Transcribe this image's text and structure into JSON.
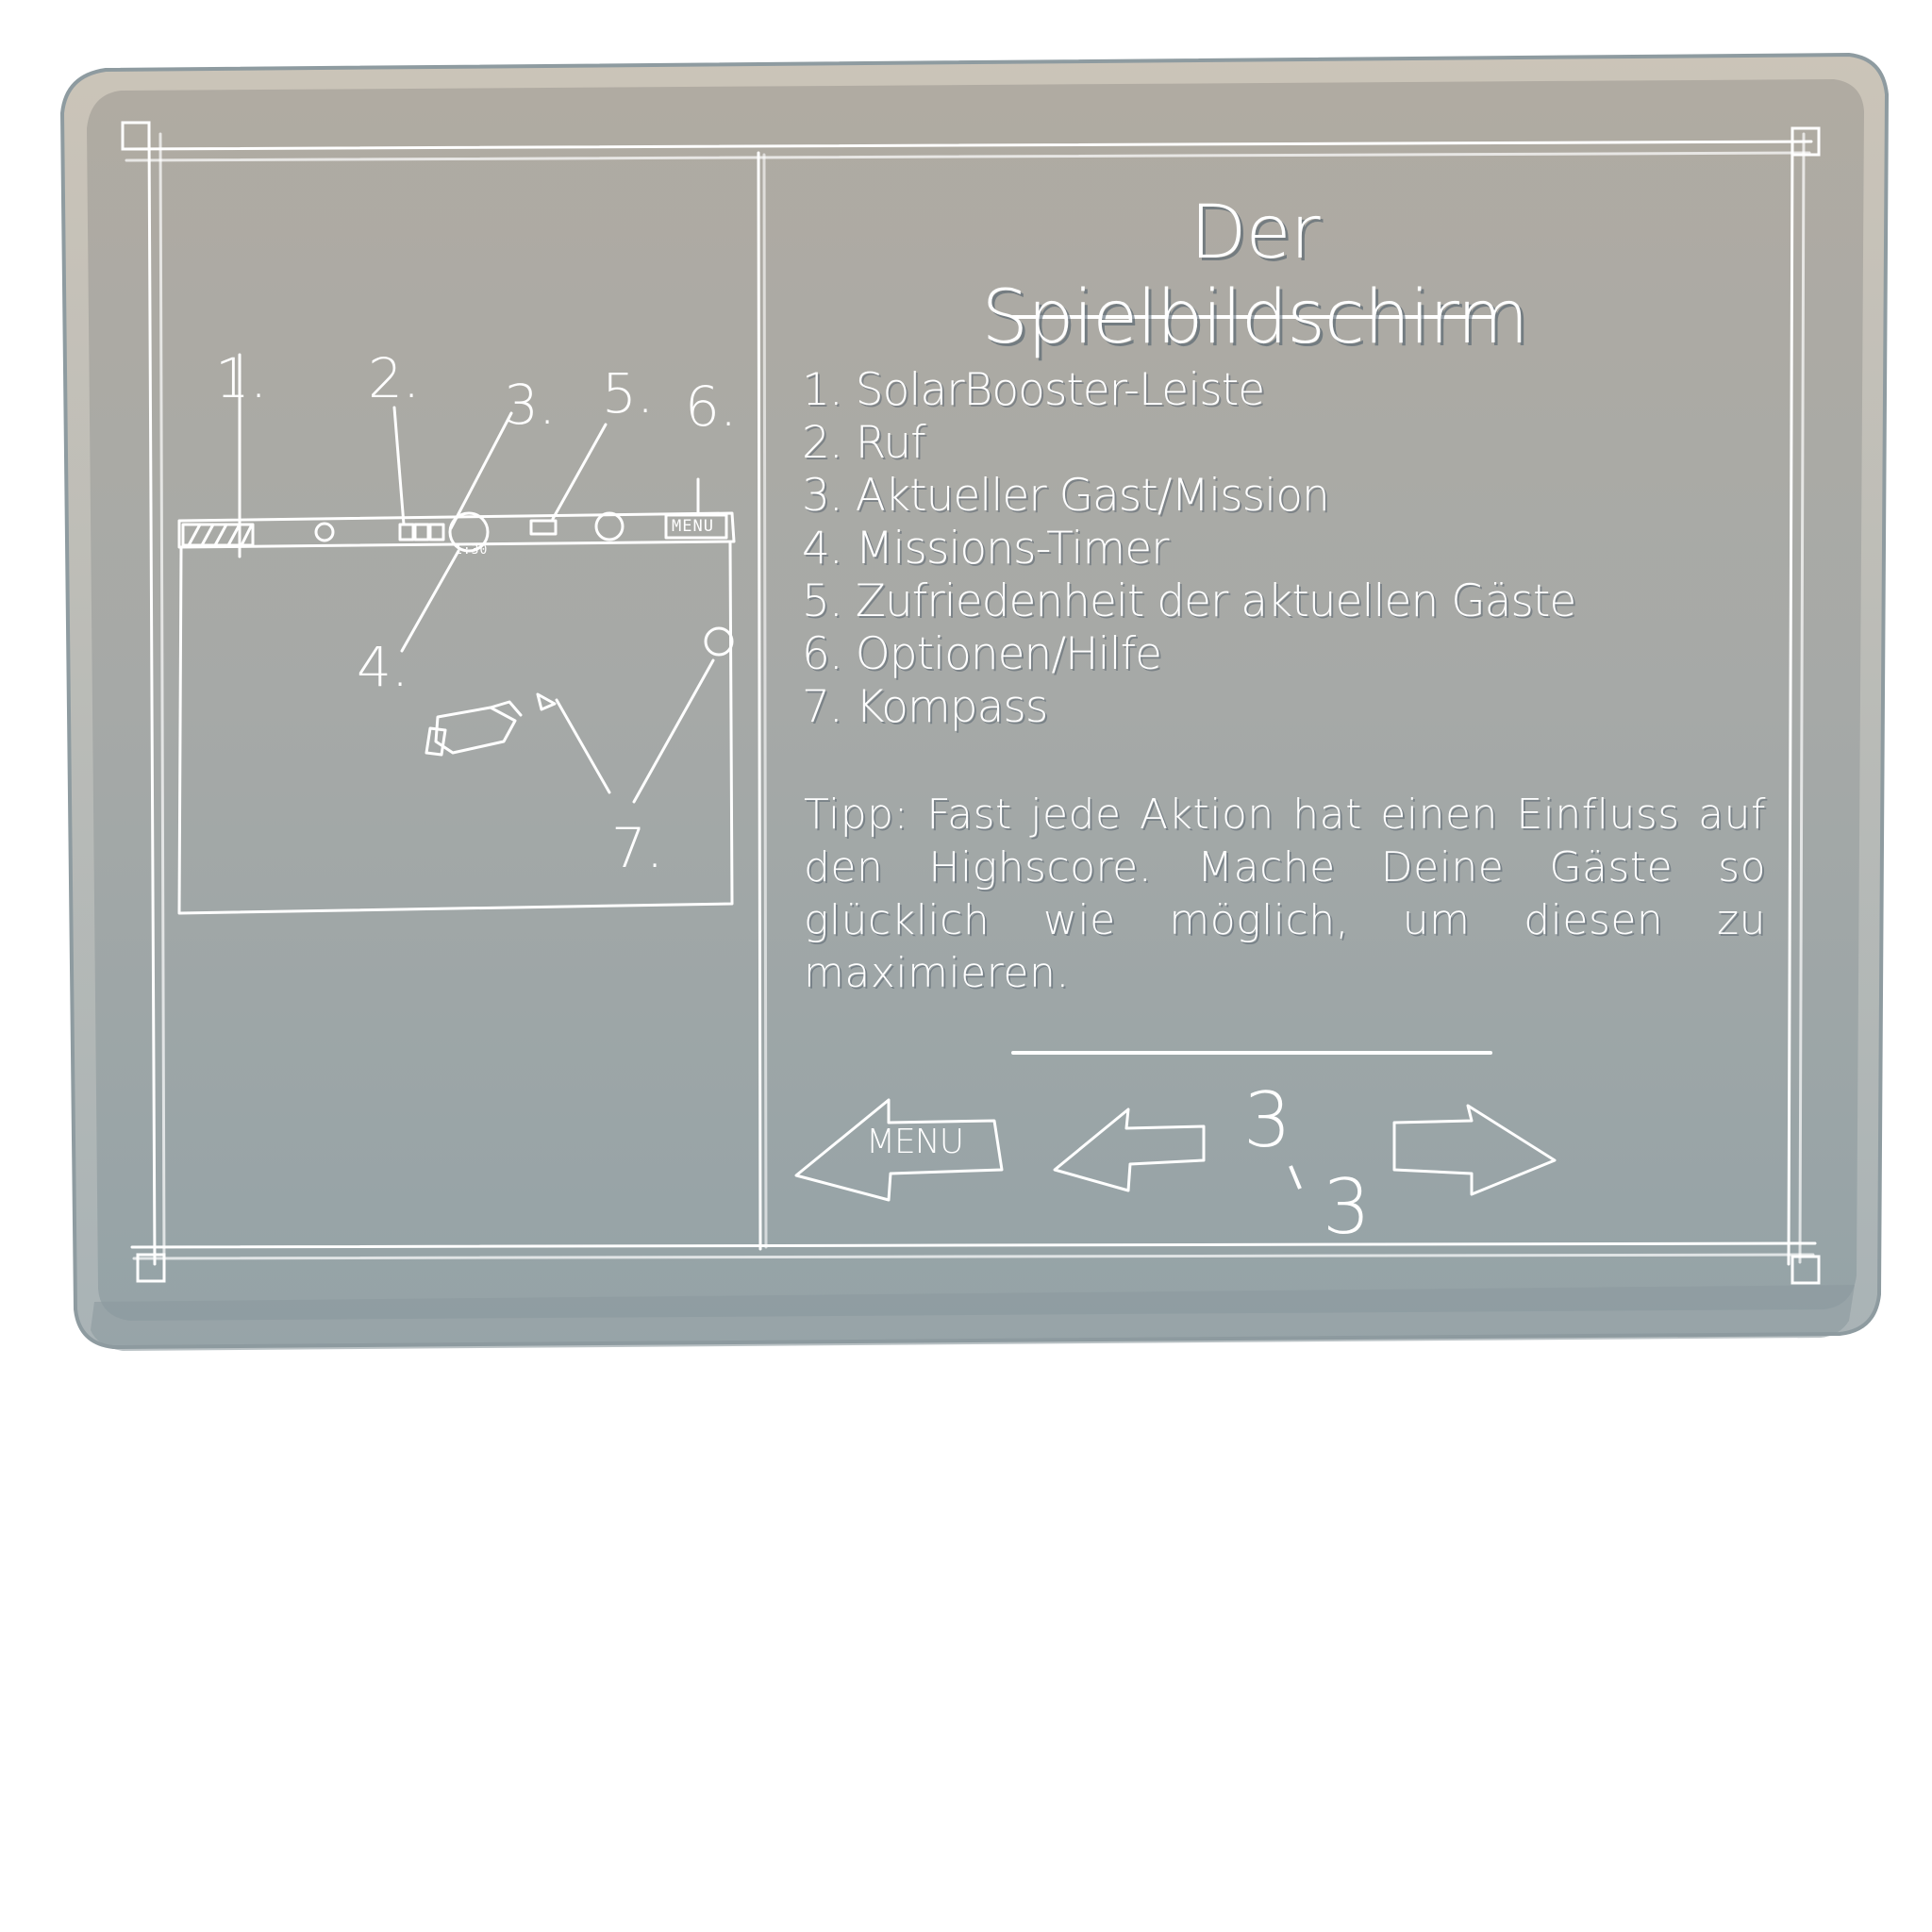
{
  "screen": {
    "title": "Der Spielbildschirm",
    "legend": [
      "1. SolarBooster-Leiste",
      "2. Ruf",
      "3. Aktueller Gast/Mission",
      "4. Missions-Timer",
      "5. Zufriedenheit der aktuellen Gäste",
      "6. Optionen/Hilfe",
      "7. Kompass"
    ],
    "tip": "Tipp: Fast jede Aktion hat einen Einfluss auf den Highscore. Mache Deine Gäste so glücklich wie möglich, um diesen zu maximieren."
  },
  "sketch": {
    "labels": [
      "1.",
      "2.",
      "3.",
      "5.",
      "6.",
      "4.",
      "7."
    ],
    "menu_text": "MENU",
    "timer_text": "1:30"
  },
  "nav": {
    "menu_label": "MENU",
    "page_current": "3",
    "page_total": "3"
  },
  "colors": {
    "board_top": "#b0aba1",
    "board_bottom": "#97a4a7",
    "chalk": "#ffffff"
  },
  "icons": [
    "left-arrow-icon",
    "right-arrow-icon",
    "menu-arrow-icon"
  ]
}
